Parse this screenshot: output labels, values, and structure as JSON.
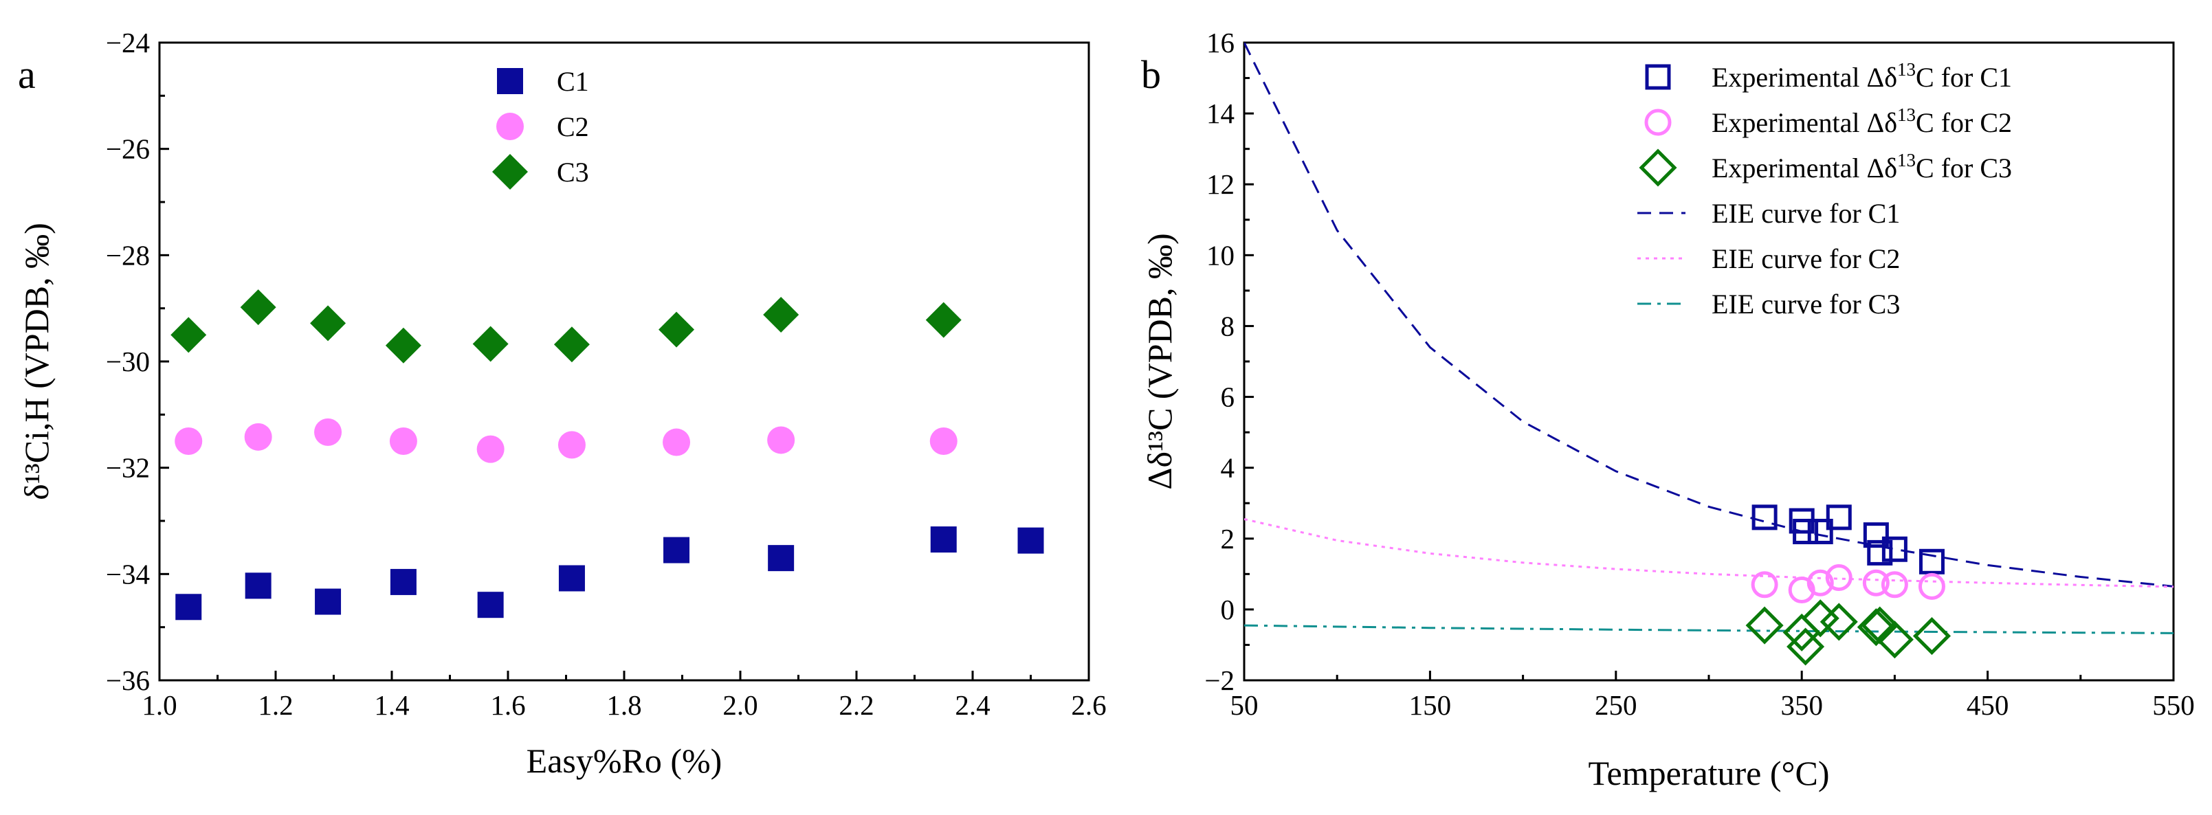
{
  "panel_a": {
    "letter": "a",
    "y_title": "δ¹³Ci,H (VPDB, ‰)",
    "chart_data": {
      "type": "scatter",
      "xlabel": "Easy%Ro (%)",
      "ylabel": "δ13Ci,H (VPDB, ‰)",
      "xlim": [
        1.0,
        2.6
      ],
      "ylim": [
        -36,
        -24
      ],
      "x_ticks": [
        "1.0",
        "1.2",
        "1.4",
        "1.6",
        "1.8",
        "2.0",
        "2.2",
        "2.4",
        "2.6"
      ],
      "y_ticks": [
        "−36",
        "−34",
        "−32",
        "−30",
        "−28",
        "−26",
        "−24"
      ],
      "legend_position": "top-center",
      "series": [
        {
          "name": "C1",
          "marker": "square",
          "color": "#0a0a9a",
          "x": [
            1.05,
            1.17,
            1.29,
            1.42,
            1.57,
            1.71,
            1.89,
            2.07,
            2.35,
            2.5
          ],
          "y": [
            -34.62,
            -34.22,
            -34.52,
            -34.15,
            -34.58,
            -34.08,
            -33.55,
            -33.7,
            -33.35,
            -33.37
          ]
        },
        {
          "name": "C2",
          "marker": "circle",
          "color": "#ff80ff",
          "x": [
            1.05,
            1.17,
            1.29,
            1.42,
            1.57,
            1.71,
            1.89,
            2.07,
            2.35
          ],
          "y": [
            -31.5,
            -31.42,
            -31.33,
            -31.5,
            -31.65,
            -31.57,
            -31.52,
            -31.48,
            -31.5
          ]
        },
        {
          "name": "C3",
          "marker": "diamond",
          "color": "#0a7a0a",
          "x": [
            1.05,
            1.17,
            1.29,
            1.42,
            1.57,
            1.71,
            1.89,
            2.07,
            2.35
          ],
          "y": [
            -29.5,
            -28.98,
            -29.28,
            -29.7,
            -29.67,
            -29.68,
            -29.4,
            -29.12,
            -29.22
          ]
        }
      ]
    }
  },
  "panel_b": {
    "letter": "b",
    "y_title": "Δδ¹³C (VPDB, ‰)",
    "chart_data": {
      "type": "scatter",
      "xlabel": "Temperature (°C)",
      "ylabel": "Δδ13C (VPDB, ‰)",
      "xlim": [
        50,
        550
      ],
      "ylim": [
        -2,
        16
      ],
      "x_ticks": [
        "50",
        "150",
        "250",
        "350",
        "450",
        "550"
      ],
      "y_ticks": [
        "−2",
        "0",
        "2",
        "4",
        "6",
        "8",
        "10",
        "12",
        "14",
        "16"
      ],
      "legend_position": "top-right",
      "series": [
        {
          "name": "Experimental Δδ13C for C1",
          "marker": "open-square",
          "color": "#0a0a9a",
          "x": [
            330,
            350,
            352,
            360,
            370,
            390,
            392,
            400,
            420
          ],
          "y": [
            2.6,
            2.5,
            2.2,
            2.2,
            2.6,
            2.1,
            1.6,
            1.7,
            1.35
          ]
        },
        {
          "name": "Experimental Δδ13C for C2",
          "marker": "open-circle",
          "color": "#ff80ff",
          "x": [
            330,
            350,
            360,
            370,
            390,
            400,
            420
          ],
          "y": [
            0.7,
            0.55,
            0.75,
            0.9,
            0.75,
            0.7,
            0.65
          ]
        },
        {
          "name": "Experimental Δδ13C for C3",
          "marker": "open-diamond",
          "color": "#0a7a0a",
          "x": [
            330,
            350,
            352,
            360,
            370,
            390,
            392,
            400,
            420
          ],
          "y": [
            -0.45,
            -0.65,
            -1.05,
            -0.25,
            -0.35,
            -0.5,
            -0.45,
            -0.85,
            -0.75
          ]
        },
        {
          "name": "EIE curve for C1",
          "line": "dash",
          "color": "#0a0a9a",
          "x": [
            50,
            100,
            150,
            200,
            250,
            300,
            350,
            400,
            450,
            500,
            550
          ],
          "y": [
            16.0,
            10.7,
            7.4,
            5.3,
            3.9,
            2.9,
            2.2,
            1.7,
            1.25,
            0.92,
            0.65
          ]
        },
        {
          "name": "EIE curve for C2",
          "line": "dot",
          "color": "#ff80ff",
          "x": [
            50,
            100,
            150,
            200,
            250,
            300,
            350,
            400,
            450,
            500,
            550
          ],
          "y": [
            2.55,
            1.95,
            1.58,
            1.32,
            1.14,
            1.0,
            0.9,
            0.82,
            0.75,
            0.69,
            0.64
          ]
        },
        {
          "name": "EIE curve for C3",
          "line": "dashdot",
          "color": "#109090",
          "x": [
            50,
            150,
            250,
            350,
            450,
            550
          ],
          "y": [
            -0.45,
            -0.52,
            -0.57,
            -0.61,
            -0.64,
            -0.67
          ]
        }
      ]
    }
  }
}
